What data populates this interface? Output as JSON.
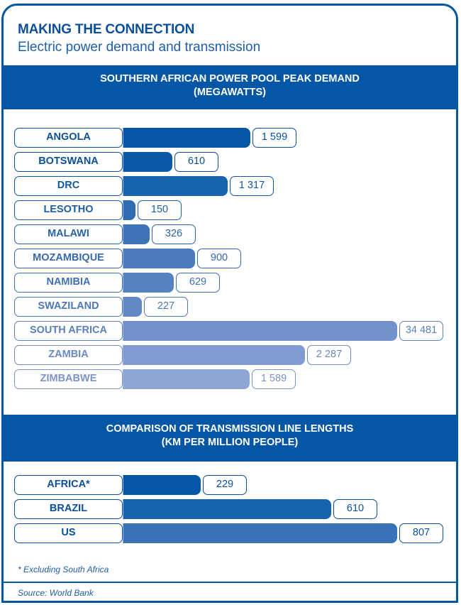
{
  "header": {
    "title": "MAKING THE CONNECTION",
    "subtitle": "Electric power demand and transmission"
  },
  "chart_data": [
    {
      "type": "bar",
      "orientation": "horizontal",
      "title_line1": "SOUTHERN AFRICAN POWER POOL PEAK DEMAND",
      "title_line2": "(MEGAWATTS)",
      "unit": "megawatts",
      "categories": [
        "ANGOLA",
        "BOTSWANA",
        "DRC",
        "LESOTHO",
        "MALAWI",
        "MOZAMBIQUE",
        "NAMIBIA",
        "SWAZILAND",
        "SOUTH AFRICA",
        "ZAMBIA",
        "ZIMBABWE"
      ],
      "values": [
        1599,
        610,
        1317,
        150,
        326,
        900,
        629,
        227,
        34481,
        2287,
        1589
      ],
      "value_labels": [
        "1 599",
        "610",
        "1 317",
        "150",
        "326",
        "900",
        "629",
        "227",
        "34 481",
        "2 287",
        "1 589"
      ],
      "bar_fill_fraction": [
        0.463,
        0.178,
        0.381,
        0.044,
        0.095,
        0.262,
        0.183,
        0.067,
        1.0,
        0.662,
        0.46
      ],
      "colors": [
        "#0557a6",
        "#0a5aa8",
        "#1863ae",
        "#2f6cb4",
        "#3e73b8",
        "#4a7bbd",
        "#5682c2",
        "#6288c6",
        "#7391ca",
        "#819bd0",
        "#8fa5d4"
      ],
      "label_colors": [
        "#0b4f9a",
        "#0b4f9a",
        "#12569f",
        "#1e5ea5",
        "#2a63a9",
        "#3669ad",
        "#4170b2",
        "#4c77b7",
        "#5b80bd",
        "#6a89c3",
        "#7a94c9"
      ]
    },
    {
      "type": "bar",
      "orientation": "horizontal",
      "title_line1": "COMPARISON OF TRANSMISSION LINE LENGTHS",
      "title_line2": "(KM PER MILLION PEOPLE)",
      "unit": "km per million people",
      "categories": [
        "AFRICA*",
        "BRAZIL",
        "US"
      ],
      "values": [
        229,
        610,
        807
      ],
      "value_labels": [
        "229",
        "610",
        "807"
      ],
      "bar_fill_fraction": [
        0.28,
        0.75,
        0.99
      ],
      "colors": [
        "#0557a6",
        "#1863ae",
        "#3a72b8"
      ],
      "label_colors": [
        "#0b4f9a",
        "#0b4f9a",
        "#0b4f9a"
      ]
    }
  ],
  "footnote": "* Excluding South Africa",
  "source": "Source: World Bank"
}
